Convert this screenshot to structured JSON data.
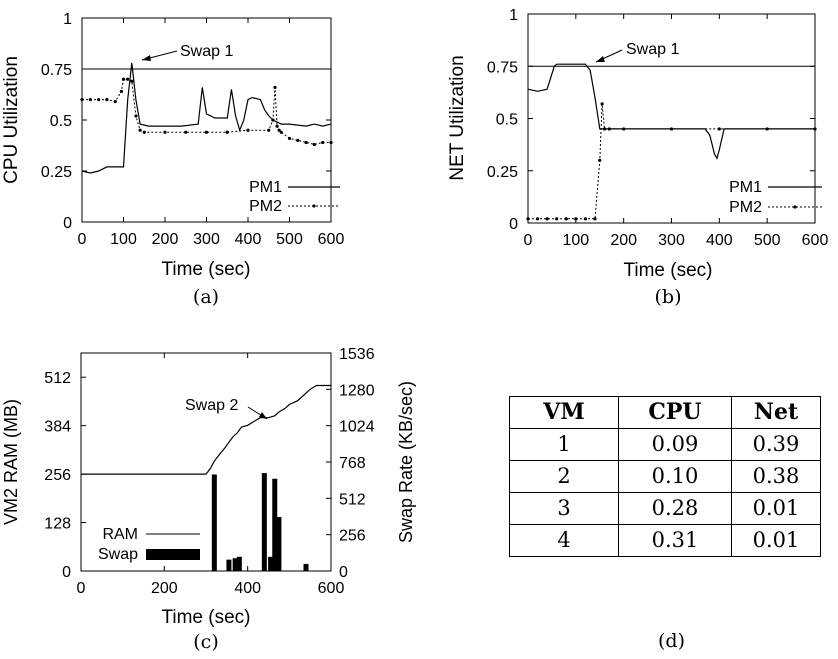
{
  "chart_data": [
    {
      "type": "line",
      "caption": "(a)",
      "xlabel": "Time (sec)",
      "ylabel": "CPU Utilization",
      "xlim": [
        0,
        600
      ],
      "ylim": [
        0,
        1
      ],
      "xticks": [
        "0",
        "100",
        "200",
        "300",
        "400",
        "500",
        "600"
      ],
      "yticks": [
        "0",
        "0.25",
        "0.5",
        "0.75",
        "1"
      ],
      "legend": "bottom-right",
      "annotation": {
        "text": "Swap 1",
        "x": 120,
        "y": 0.77
      },
      "threshold": 0.75,
      "series": [
        {
          "name": "PM1",
          "style": "solid",
          "x": [
            0,
            20,
            40,
            60,
            80,
            100,
            110,
            120,
            130,
            140,
            160,
            200,
            240,
            280,
            290,
            300,
            310,
            320,
            350,
            360,
            370,
            380,
            390,
            400,
            410,
            430,
            440,
            450,
            460,
            470,
            480,
            500,
            540,
            560,
            580,
            600
          ],
          "y": [
            0.25,
            0.24,
            0.25,
            0.27,
            0.27,
            0.27,
            0.6,
            0.78,
            0.6,
            0.48,
            0.47,
            0.47,
            0.47,
            0.48,
            0.66,
            0.53,
            0.52,
            0.51,
            0.51,
            0.65,
            0.52,
            0.45,
            0.5,
            0.6,
            0.61,
            0.6,
            0.55,
            0.52,
            0.5,
            0.49,
            0.48,
            0.48,
            0.47,
            0.48,
            0.47,
            0.48
          ]
        },
        {
          "name": "PM2",
          "style": "dotted-marker",
          "x": [
            0,
            20,
            40,
            60,
            80,
            95,
            100,
            110,
            120,
            130,
            140,
            150,
            200,
            250,
            300,
            350,
            400,
            450,
            460,
            465,
            470,
            475,
            480,
            500,
            520,
            540,
            560,
            580,
            600
          ],
          "y": [
            0.6,
            0.6,
            0.6,
            0.6,
            0.59,
            0.64,
            0.7,
            0.7,
            0.69,
            0.52,
            0.45,
            0.44,
            0.44,
            0.44,
            0.44,
            0.44,
            0.45,
            0.45,
            0.5,
            0.66,
            0.47,
            0.45,
            0.44,
            0.41,
            0.4,
            0.39,
            0.38,
            0.39,
            0.39
          ]
        }
      ]
    },
    {
      "type": "line",
      "caption": "(b)",
      "xlabel": "Time (sec)",
      "ylabel": "NET Utilization",
      "xlim": [
        0,
        600
      ],
      "ylim": [
        0,
        1
      ],
      "xticks": [
        "0",
        "100",
        "200",
        "300",
        "400",
        "500",
        "600"
      ],
      "yticks": [
        "0",
        "0.25",
        "0.5",
        "0.75",
        "1"
      ],
      "legend": "bottom-right",
      "annotation": {
        "text": "Swap 1",
        "x": 140,
        "y": 0.74
      },
      "threshold": 0.75,
      "series": [
        {
          "name": "PM1",
          "style": "solid",
          "x": [
            0,
            20,
            40,
            55,
            60,
            100,
            120,
            130,
            140,
            150,
            200,
            300,
            370,
            380,
            390,
            395,
            400,
            410,
            450,
            500,
            600
          ],
          "y": [
            0.64,
            0.63,
            0.64,
            0.75,
            0.76,
            0.76,
            0.76,
            0.73,
            0.6,
            0.45,
            0.45,
            0.45,
            0.45,
            0.42,
            0.33,
            0.31,
            0.35,
            0.45,
            0.45,
            0.45,
            0.45
          ]
        },
        {
          "name": "PM2",
          "style": "dotted-marker",
          "x": [
            0,
            20,
            40,
            60,
            80,
            100,
            120,
            140,
            150,
            155,
            160,
            170,
            200,
            300,
            400,
            500,
            600
          ],
          "y": [
            0.02,
            0.02,
            0.02,
            0.02,
            0.02,
            0.02,
            0.02,
            0.02,
            0.3,
            0.57,
            0.45,
            0.45,
            0.45,
            0.45,
            0.45,
            0.45,
            0.45
          ]
        }
      ]
    },
    {
      "type": "line",
      "caption": "(c)",
      "xlabel": "Time (sec)",
      "ylabel": "VM2 RAM (MB)",
      "y2label": "Swap Rate (KB/sec)",
      "xlim": [
        0,
        600
      ],
      "ylim": [
        0,
        576
      ],
      "y2lim": [
        0,
        1536
      ],
      "xticks": [
        "0",
        "200",
        "400",
        "600"
      ],
      "yticks": [
        "0",
        "128",
        "256",
        "384",
        "512"
      ],
      "y2ticks": [
        "0",
        "256",
        "512",
        "768",
        "1024",
        "1280",
        "1536"
      ],
      "legend": "bottom-left",
      "annotation": {
        "text": "Swap 2",
        "x": 425,
        "y": 410
      },
      "series": [
        {
          "name": "RAM",
          "style": "solid",
          "x": [
            0,
            100,
            300,
            310,
            320,
            330,
            345,
            355,
            365,
            375,
            385,
            400,
            415,
            430,
            450,
            465,
            475,
            490,
            500,
            520,
            530,
            540,
            550,
            565,
            580,
            600
          ],
          "y": [
            256,
            256,
            256,
            270,
            290,
            305,
            325,
            340,
            355,
            365,
            380,
            385,
            395,
            405,
            405,
            410,
            420,
            430,
            440,
            450,
            460,
            470,
            480,
            490,
            490,
            490
          ]
        },
        {
          "name": "Swap",
          "style": "bar",
          "x": [
            320,
            355,
            370,
            380,
            440,
            455,
            465,
            475,
            540
          ],
          "y": [
            680,
            80,
            90,
            100,
            690,
            100,
            650,
            380,
            50
          ]
        }
      ]
    },
    {
      "type": "table",
      "caption": "(d)",
      "columns": [
        "VM",
        "CPU",
        "Net"
      ],
      "rows": [
        [
          "1",
          "0.09",
          "0.39"
        ],
        [
          "2",
          "0.10",
          "0.38"
        ],
        [
          "3",
          "0.28",
          "0.01"
        ],
        [
          "4",
          "0.31",
          "0.01"
        ]
      ]
    }
  ]
}
